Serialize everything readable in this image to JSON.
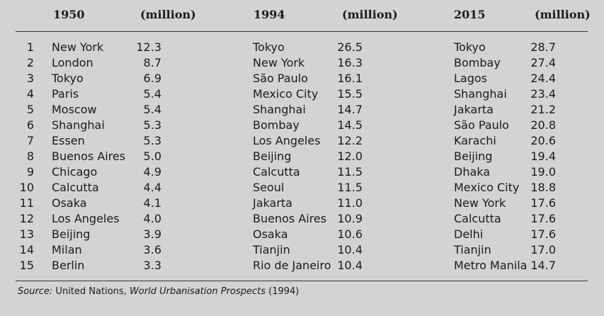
{
  "headers": {
    "y1": "1950",
    "u1": "(million)",
    "y2": "1994",
    "u2": "(million)",
    "y3": "2015",
    "u3": "(million)"
  },
  "ranks": [
    "1",
    "2",
    "3",
    "4",
    "5",
    "6",
    "7",
    "8",
    "9",
    "10",
    "11",
    "12",
    "13",
    "14",
    "15"
  ],
  "c1950": [
    "New York",
    "London",
    "Tokyo",
    "Paris",
    "Moscow",
    "Shanghai",
    "Essen",
    "Buenos Aires",
    "Chicago",
    "Calcutta",
    "Osaka",
    "Los Angeles",
    "Beijing",
    "Milan",
    "Berlin"
  ],
  "v1950": [
    "12.3",
    "8.7",
    "6.9",
    "5.4",
    "5.4",
    "5.3",
    "5.3",
    "5.0",
    "4.9",
    "4.4",
    "4.1",
    "4.0",
    "3.9",
    "3.6",
    "3.3"
  ],
  "c1994": [
    "Tokyo",
    "New York",
    "São Paulo",
    "Mexico City",
    "Shanghai",
    "Bombay",
    "Los Angeles",
    "Beijing",
    "Calcutta",
    "Seoul",
    "Jakarta",
    "Buenos Aires",
    "Osaka",
    "Tianjin",
    "Rio de Janeiro"
  ],
  "v1994": [
    "26.5",
    "16.3",
    "16.1",
    "15.5",
    "14.7",
    "14.5",
    "12.2",
    "12.0",
    "11.5",
    "11.5",
    "11.0",
    "10.9",
    "10.6",
    "10.4",
    "10.4"
  ],
  "c2015": [
    "Tokyo",
    "Bombay",
    "Lagos",
    "Shanghai",
    "Jakarta",
    "São Paulo",
    "Karachi",
    "Beijing",
    "Dhaka",
    "Mexico City",
    "New York",
    "Calcutta",
    "Delhi",
    "Tianjin",
    "Metro Manila"
  ],
  "v2015": [
    "28.7",
    "27.4",
    "24.4",
    "23.4",
    "21.2",
    "20.8",
    "20.6",
    "19.4",
    "19.0",
    "18.8",
    "17.6",
    "17.6",
    "17.6",
    "17.0",
    "14.7"
  ],
  "footer": {
    "label": "Source:",
    "org": "United Nations,",
    "title": "World Urbanisation Prospects",
    "year": "(1994)"
  }
}
